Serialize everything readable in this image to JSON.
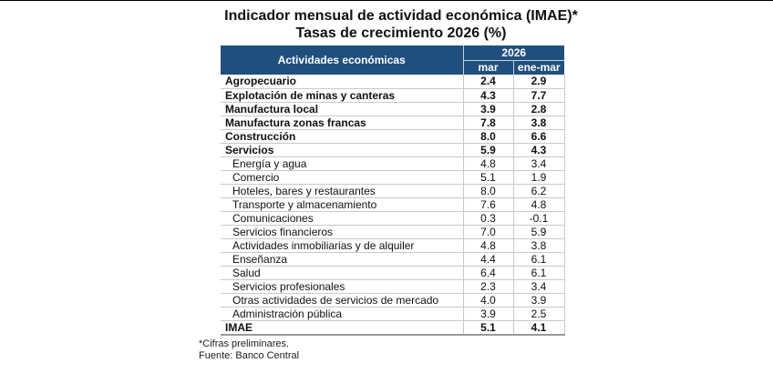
{
  "document": {
    "title_line1": "Indicador mensual de actividad económica (IMAE)*",
    "title_line2": "Tasas de crecimiento 2026 (%)",
    "footnotes": [
      "*Cifras preliminares.",
      "Fuente: Banco Central"
    ]
  },
  "colors": {
    "header_bg": "#204F7E",
    "header_text": "#FFFFFF",
    "header_separator": "#C7D2DC",
    "grid_line": "#C9C9C9",
    "table_bottom_line": "#9A9A9A",
    "text": "#111111"
  },
  "table": {
    "header": {
      "activities": "Actividades económicas",
      "year": "2026",
      "month_col": "mar",
      "ytd_col": "ene-mar"
    },
    "rows": [
      {
        "label": "Agropecuario",
        "mar": "2.4",
        "ene_mar": "2.9",
        "bold": true
      },
      {
        "label": "Explotación de minas y canteras",
        "mar": "4.3",
        "ene_mar": "7.7",
        "bold": true
      },
      {
        "label": "Manufactura local",
        "mar": "3.9",
        "ene_mar": "2.8",
        "bold": true
      },
      {
        "label": "Manufactura zonas francas",
        "mar": "7.8",
        "ene_mar": "3.8",
        "bold": true
      },
      {
        "label": "Construcción",
        "mar": "8.0",
        "ene_mar": "6.6",
        "bold": true
      },
      {
        "label": "Servicios",
        "mar": "5.9",
        "ene_mar": "4.3",
        "bold": true
      },
      {
        "label": "Energía y agua",
        "mar": "4.8",
        "ene_mar": "3.4",
        "bold": false
      },
      {
        "label": "Comercio",
        "mar": "5.1",
        "ene_mar": "1.9",
        "bold": false
      },
      {
        "label": "Hoteles, bares y restaurantes",
        "mar": "8.0",
        "ene_mar": "6.2",
        "bold": false
      },
      {
        "label": "Transporte y almacenamiento",
        "mar": "7.6",
        "ene_mar": "4.8",
        "bold": false
      },
      {
        "label": "Comunicaciones",
        "mar": "0.3",
        "ene_mar": "-0.1",
        "bold": false
      },
      {
        "label": "Servicios financieros",
        "mar": "7.0",
        "ene_mar": "5.9",
        "bold": false
      },
      {
        "label": "Actividades inmobiliarias y de alquiler",
        "mar": "4.8",
        "ene_mar": "3.8",
        "bold": false
      },
      {
        "label": "Enseñanza",
        "mar": "4.4",
        "ene_mar": "6.1",
        "bold": false
      },
      {
        "label": "Salud",
        "mar": "6.4",
        "ene_mar": "6.1",
        "bold": false
      },
      {
        "label": "Servicios profesionales",
        "mar": "2.3",
        "ene_mar": "3.4",
        "bold": false
      },
      {
        "label": "Otras actividades de servicios de mercado",
        "mar": "4.0",
        "ene_mar": "3.9",
        "bold": false
      },
      {
        "label": "Administración pública",
        "mar": "3.9",
        "ene_mar": "2.5",
        "bold": false
      },
      {
        "label": "IMAE",
        "mar": "5.1",
        "ene_mar": "4.1",
        "bold": true
      }
    ]
  }
}
